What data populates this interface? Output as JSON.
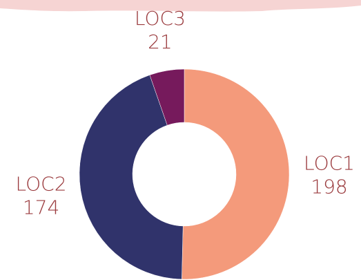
{
  "chart_data": {
    "type": "donut",
    "categories": [
      "LOC1",
      "LOC2",
      "LOC3"
    ],
    "values": [
      198,
      174,
      21
    ],
    "colors": [
      "#f49a7b",
      "#30336b",
      "#761a5c"
    ]
  }
}
